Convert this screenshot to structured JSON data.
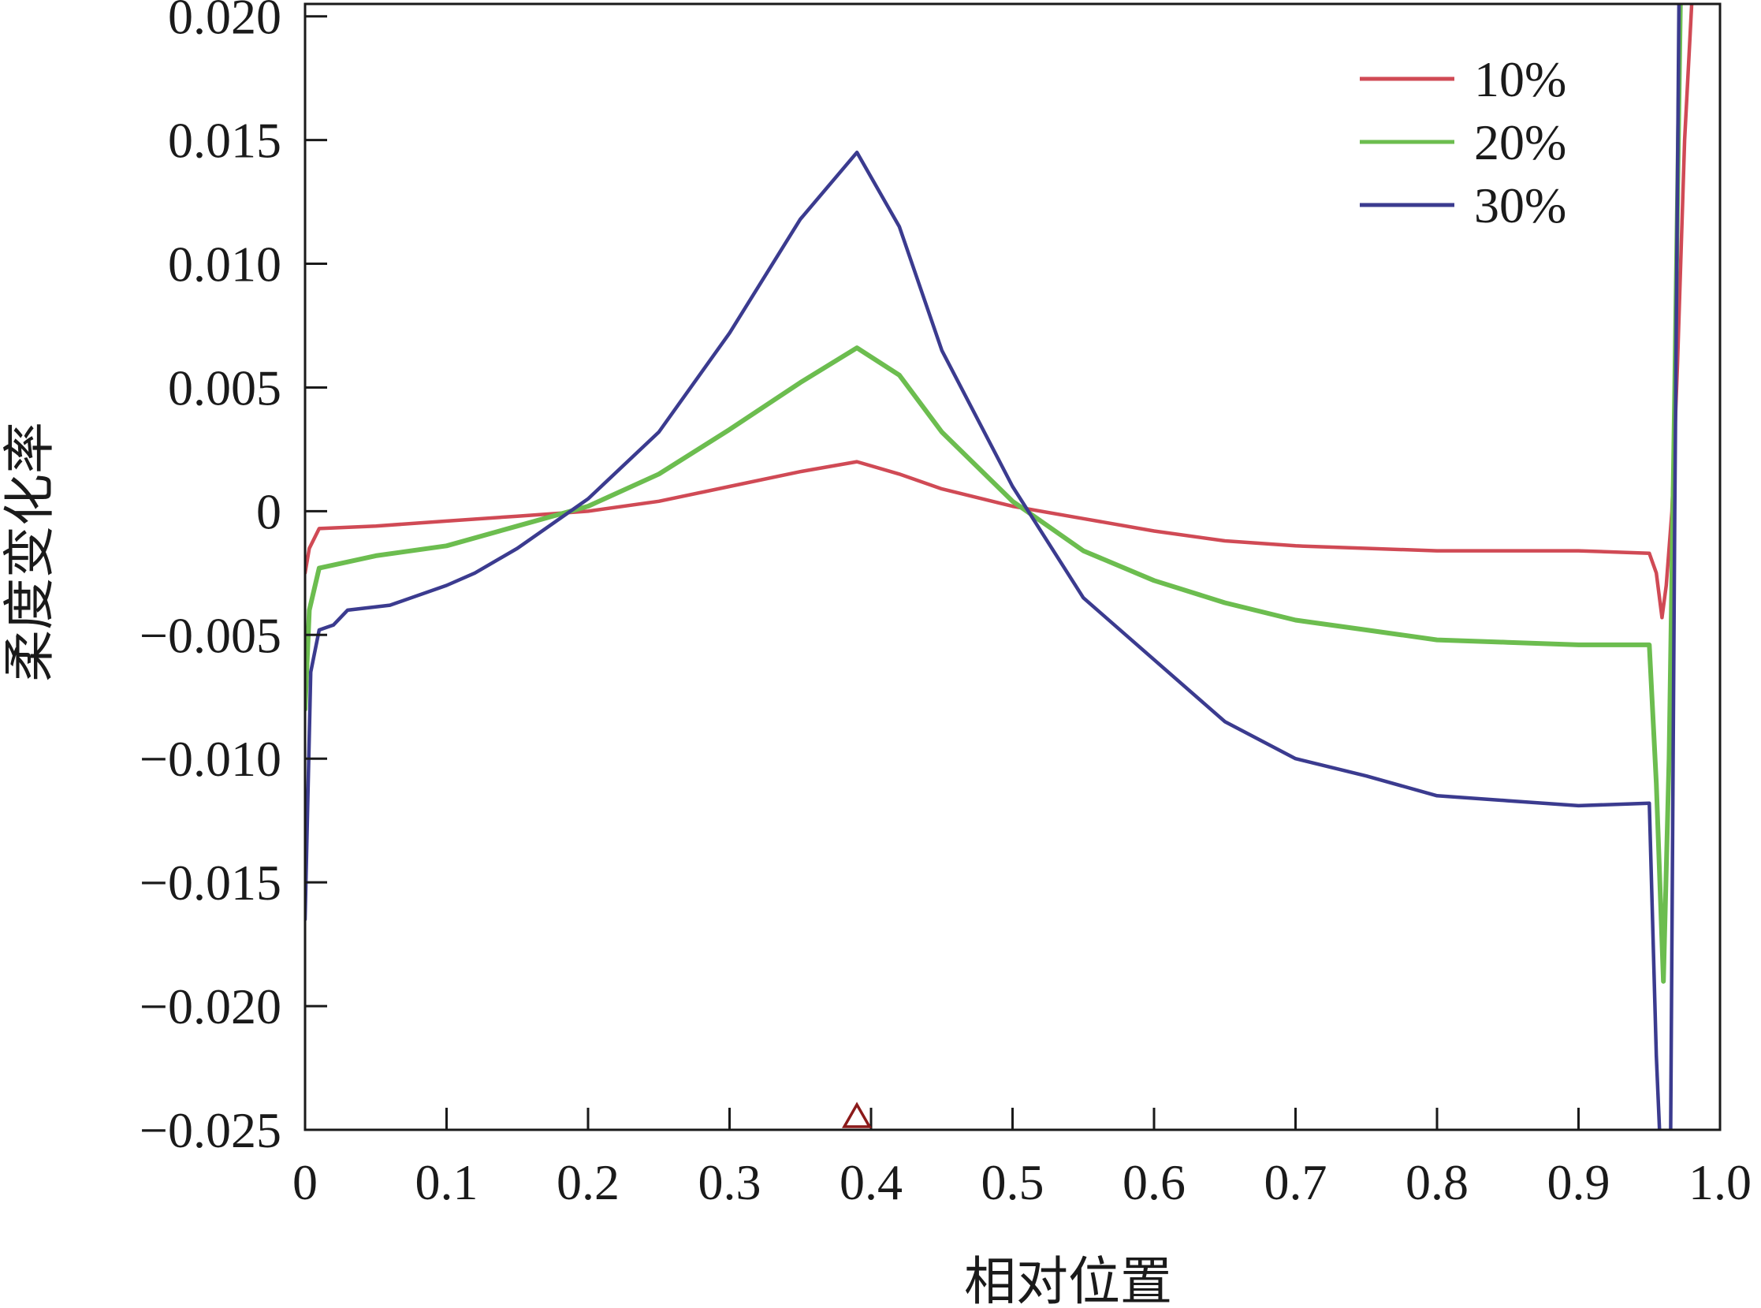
{
  "chart_data": {
    "type": "line",
    "title": "",
    "xlabel": "相对位置",
    "ylabel": "柔度变化率",
    "xlim": [
      0,
      1.0
    ],
    "ylim": [
      -0.025,
      0.0205
    ],
    "x_ticks": [
      0,
      0.1,
      0.2,
      0.3,
      0.4,
      0.5,
      0.6,
      0.7,
      0.8,
      0.9,
      1.0
    ],
    "x_tick_labels": [
      "0",
      "0.1",
      "0.2",
      "0.3",
      "0.4",
      "0.5",
      "0.6",
      "0.7",
      "0.8",
      "0.9",
      "1.0"
    ],
    "y_ticks": [
      -0.025,
      -0.02,
      -0.015,
      -0.01,
      -0.005,
      0,
      0.005,
      0.01,
      0.015,
      0.02
    ],
    "y_tick_labels": [
      "−0.025",
      "−0.020",
      "−0.015",
      "−0.010",
      "−0.005",
      "0",
      "0.005",
      "0.010",
      "0.015",
      "0.020"
    ],
    "grid": false,
    "legend_position": "top-right",
    "marker": {
      "x": 0.39,
      "symbol": "triangle",
      "color": "#8b1a1a"
    },
    "series": [
      {
        "name": "10%",
        "color": "#d04a55",
        "points": [
          [
            0,
            -0.0025
          ],
          [
            0.003,
            -0.0015
          ],
          [
            0.01,
            -0.0007
          ],
          [
            0.05,
            -0.0006
          ],
          [
            0.1,
            -0.0004
          ],
          [
            0.15,
            -0.0002
          ],
          [
            0.2,
            0.0
          ],
          [
            0.25,
            0.0004
          ],
          [
            0.3,
            0.001
          ],
          [
            0.35,
            0.0016
          ],
          [
            0.39,
            0.002
          ],
          [
            0.42,
            0.0015
          ],
          [
            0.45,
            0.0009
          ],
          [
            0.5,
            0.0002
          ],
          [
            0.55,
            -0.0003
          ],
          [
            0.6,
            -0.0008
          ],
          [
            0.65,
            -0.0012
          ],
          [
            0.7,
            -0.0014
          ],
          [
            0.75,
            -0.0015
          ],
          [
            0.8,
            -0.0016
          ],
          [
            0.85,
            -0.0016
          ],
          [
            0.9,
            -0.0016
          ],
          [
            0.95,
            -0.0017
          ],
          [
            0.955,
            -0.0025
          ],
          [
            0.959,
            -0.0043
          ],
          [
            0.962,
            -0.003
          ],
          [
            0.966,
            0.0
          ],
          [
            0.97,
            0.006
          ],
          [
            0.975,
            0.015
          ],
          [
            0.98,
            0.0205
          ]
        ]
      },
      {
        "name": "20%",
        "color": "#6cbd4f",
        "points": [
          [
            0,
            -0.008
          ],
          [
            0.003,
            -0.004
          ],
          [
            0.01,
            -0.0023
          ],
          [
            0.05,
            -0.0018
          ],
          [
            0.1,
            -0.0014
          ],
          [
            0.15,
            -0.0006
          ],
          [
            0.2,
            0.0002
          ],
          [
            0.25,
            0.0015
          ],
          [
            0.3,
            0.0033
          ],
          [
            0.35,
            0.0052
          ],
          [
            0.39,
            0.0066
          ],
          [
            0.42,
            0.0055
          ],
          [
            0.45,
            0.0032
          ],
          [
            0.5,
            0.0004
          ],
          [
            0.55,
            -0.0016
          ],
          [
            0.6,
            -0.0028
          ],
          [
            0.65,
            -0.0037
          ],
          [
            0.7,
            -0.0044
          ],
          [
            0.75,
            -0.0048
          ],
          [
            0.8,
            -0.0052
          ],
          [
            0.85,
            -0.0053
          ],
          [
            0.9,
            -0.0054
          ],
          [
            0.95,
            -0.0054
          ],
          [
            0.955,
            -0.011
          ],
          [
            0.96,
            -0.019
          ],
          [
            0.964,
            -0.01
          ],
          [
            0.968,
            0.005
          ],
          [
            0.972,
            0.0205
          ]
        ]
      },
      {
        "name": "30%",
        "color": "#3b3b8f",
        "points": [
          [
            0,
            -0.0165
          ],
          [
            0.004,
            -0.0065
          ],
          [
            0.01,
            -0.0048
          ],
          [
            0.02,
            -0.0046
          ],
          [
            0.03,
            -0.004
          ],
          [
            0.06,
            -0.0038
          ],
          [
            0.1,
            -0.003
          ],
          [
            0.12,
            -0.0025
          ],
          [
            0.15,
            -0.0015
          ],
          [
            0.2,
            0.0005
          ],
          [
            0.25,
            0.0032
          ],
          [
            0.3,
            0.0072
          ],
          [
            0.35,
            0.0118
          ],
          [
            0.39,
            0.0145
          ],
          [
            0.42,
            0.0115
          ],
          [
            0.45,
            0.0065
          ],
          [
            0.5,
            0.001
          ],
          [
            0.55,
            -0.0035
          ],
          [
            0.6,
            -0.006
          ],
          [
            0.65,
            -0.0085
          ],
          [
            0.7,
            -0.01
          ],
          [
            0.75,
            -0.0107
          ],
          [
            0.8,
            -0.0115
          ],
          [
            0.85,
            -0.0117
          ],
          [
            0.9,
            -0.0119
          ],
          [
            0.95,
            -0.0118
          ],
          [
            0.955,
            -0.022
          ],
          [
            0.958,
            -0.026
          ],
          [
            0.965,
            -0.026
          ],
          [
            0.968,
            0.0
          ],
          [
            0.971,
            0.0205
          ]
        ]
      }
    ]
  }
}
